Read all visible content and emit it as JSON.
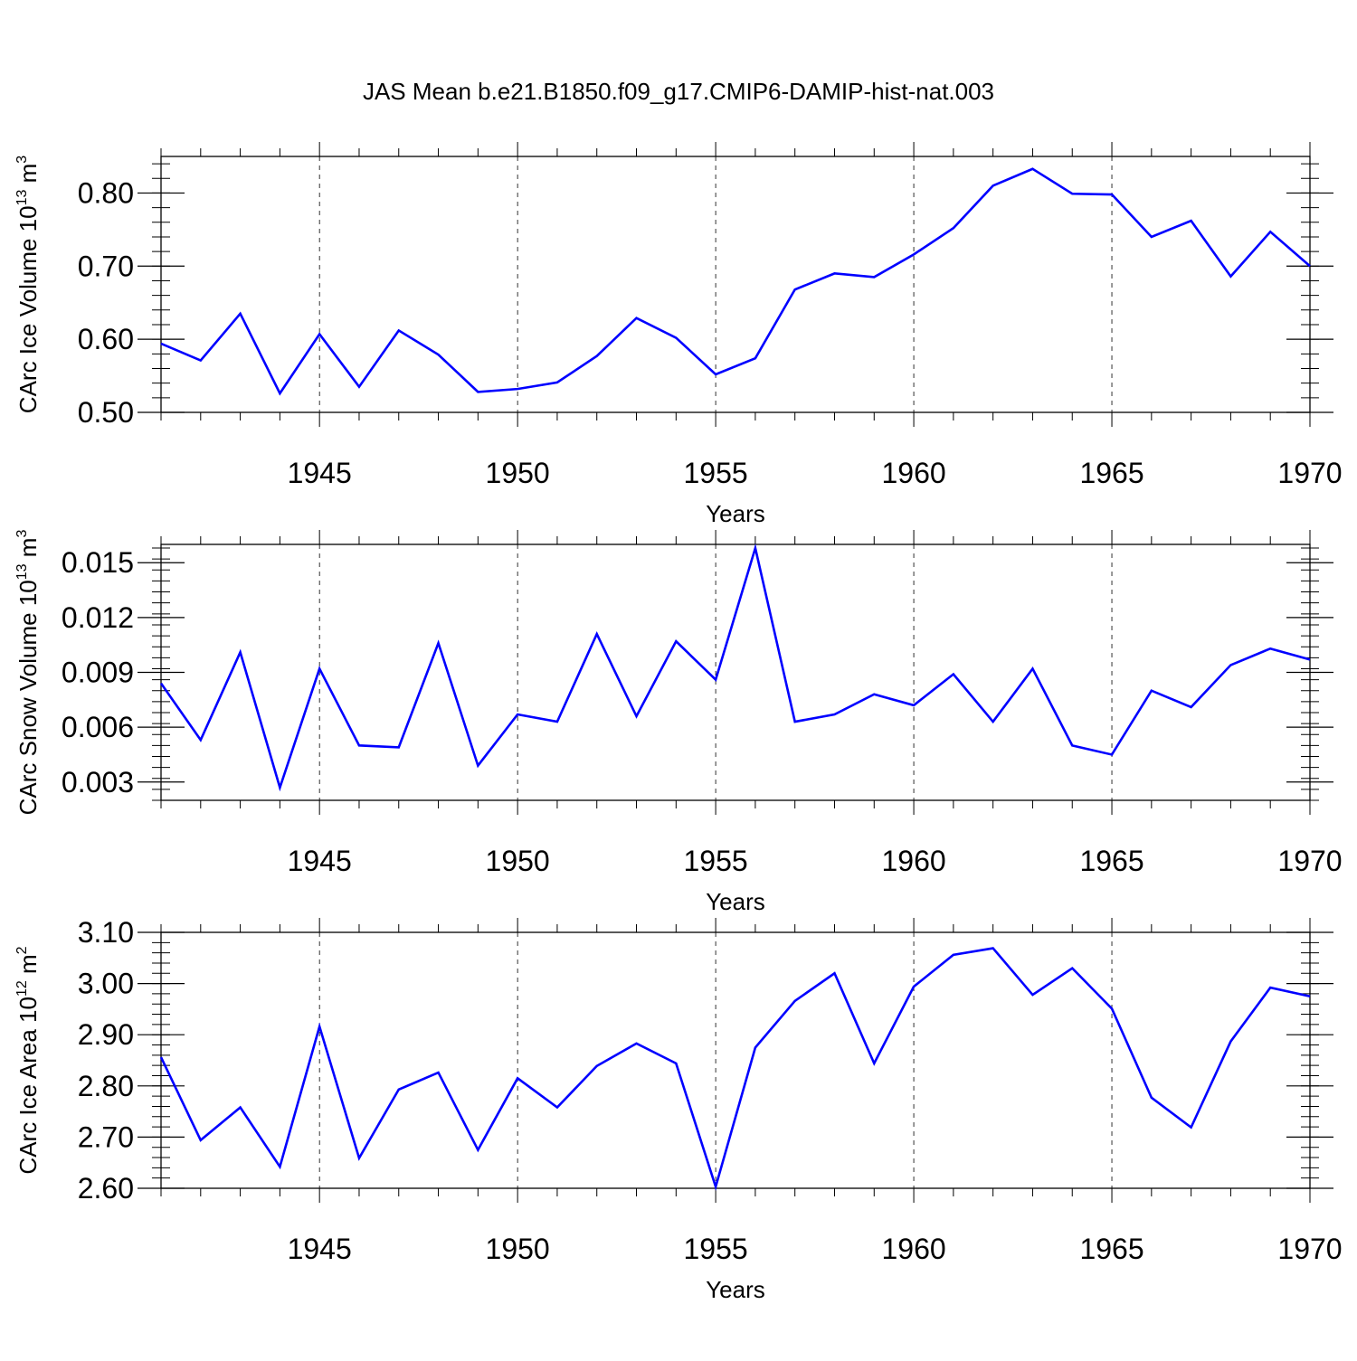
{
  "title": "JAS Mean b.e21.B1850.f09_g17.CMIP6-DAMIP-hist-nat.003",
  "line_color": "#0000ff",
  "chart_data": [
    {
      "type": "line",
      "ylabel_prefix": "CArc Ice Volume 10",
      "ylabel_exp": "13",
      "ylabel_unit": " m",
      "ylabel_unit_exp": "3",
      "xlabel": "Years",
      "xlim": [
        1941,
        1970
      ],
      "ylim": [
        0.5,
        0.85
      ],
      "yticks": [
        0.5,
        0.6,
        0.7,
        0.8
      ],
      "ytick_labels": [
        "0.50",
        "0.60",
        "0.70",
        "0.80"
      ],
      "xticks": [
        1945,
        1950,
        1955,
        1960,
        1965,
        1970
      ],
      "xtick_labels": [
        "1945",
        "1950",
        "1955",
        "1960",
        "1965",
        "1970"
      ],
      "x": [
        1941,
        1942,
        1943,
        1944,
        1945,
        1946,
        1947,
        1948,
        1949,
        1950,
        1951,
        1952,
        1953,
        1954,
        1955,
        1956,
        1957,
        1958,
        1959,
        1960,
        1961,
        1962,
        1963,
        1964,
        1965,
        1966,
        1967,
        1968,
        1969,
        1970
      ],
      "values": [
        0.594,
        0.571,
        0.635,
        0.526,
        0.607,
        0.535,
        0.612,
        0.579,
        0.528,
        0.532,
        0.541,
        0.577,
        0.629,
        0.602,
        0.552,
        0.574,
        0.668,
        0.69,
        0.685,
        0.716,
        0.752,
        0.81,
        0.833,
        0.799,
        0.798,
        0.74,
        0.762,
        0.686,
        0.747,
        0.7
      ]
    },
    {
      "type": "line",
      "ylabel_prefix": "CArc Snow Volume 10",
      "ylabel_exp": "13",
      "ylabel_unit": " m",
      "ylabel_unit_exp": "3",
      "xlabel": "Years",
      "xlim": [
        1941,
        1970
      ],
      "ylim": [
        0.002,
        0.016
      ],
      "yticks": [
        0.003,
        0.006,
        0.009,
        0.012,
        0.015
      ],
      "ytick_labels": [
        "0.003",
        "0.006",
        "0.009",
        "0.012",
        "0.015"
      ],
      "xticks": [
        1945,
        1950,
        1955,
        1960,
        1965,
        1970
      ],
      "xtick_labels": [
        "1945",
        "1950",
        "1955",
        "1960",
        "1965",
        "1970"
      ],
      "x": [
        1941,
        1942,
        1943,
        1944,
        1945,
        1946,
        1947,
        1948,
        1949,
        1950,
        1951,
        1952,
        1953,
        1954,
        1955,
        1956,
        1957,
        1958,
        1959,
        1960,
        1961,
        1962,
        1963,
        1964,
        1965,
        1966,
        1967,
        1968,
        1969,
        1970
      ],
      "values": [
        0.0084,
        0.0053,
        0.0101,
        0.0027,
        0.0092,
        0.005,
        0.0049,
        0.0106,
        0.0039,
        0.0067,
        0.0063,
        0.0111,
        0.0066,
        0.0107,
        0.0086,
        0.0158,
        0.0063,
        0.0067,
        0.0078,
        0.0072,
        0.0089,
        0.0063,
        0.0092,
        0.005,
        0.0045,
        0.008,
        0.0071,
        0.0094,
        0.0103,
        0.0097
      ]
    },
    {
      "type": "line",
      "ylabel_prefix": "CArc Ice Area 10",
      "ylabel_exp": "12",
      "ylabel_unit": " m",
      "ylabel_unit_exp": "2",
      "xlabel": "Years",
      "xlim": [
        1941,
        1970
      ],
      "ylim": [
        2.6,
        3.1
      ],
      "yticks": [
        2.6,
        2.7,
        2.8,
        2.9,
        3.0,
        3.1
      ],
      "ytick_labels": [
        "2.60",
        "2.70",
        "2.80",
        "2.90",
        "3.00",
        "3.10"
      ],
      "xticks": [
        1945,
        1950,
        1955,
        1960,
        1965,
        1970
      ],
      "xtick_labels": [
        "1945",
        "1950",
        "1955",
        "1960",
        "1965",
        "1970"
      ],
      "x": [
        1941,
        1942,
        1943,
        1944,
        1945,
        1946,
        1947,
        1948,
        1949,
        1950,
        1951,
        1952,
        1953,
        1954,
        1955,
        1956,
        1957,
        1958,
        1959,
        1960,
        1961,
        1962,
        1963,
        1964,
        1965,
        1966,
        1967,
        1968,
        1969,
        1970
      ],
      "values": [
        2.856,
        2.694,
        2.758,
        2.642,
        2.916,
        2.659,
        2.793,
        2.826,
        2.675,
        2.815,
        2.758,
        2.839,
        2.883,
        2.844,
        2.603,
        2.875,
        2.966,
        3.02,
        2.844,
        2.994,
        3.056,
        3.069,
        2.978,
        3.03,
        2.951,
        2.777,
        2.719,
        2.887,
        2.992,
        2.975
      ]
    }
  ]
}
